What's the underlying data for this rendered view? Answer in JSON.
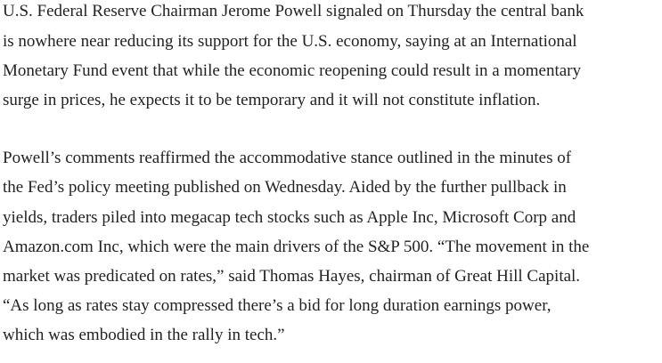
{
  "article": {
    "paragraphs": [
      {
        "lines": [
          "U.S. Federal Reserve Chairman Jerome Powell signaled on Thursday the central bank",
          "is nowhere near reducing its support for the U.S. economy, saying at an International",
          "Monetary Fund event that while the economic reopening could result in a momentary",
          "surge in prices, he expects it to be temporary and it will not constitute inflation."
        ]
      },
      {
        "lines": [
          "Powell’s comments reaffirmed the accommodative stance outlined in the minutes of",
          "the Fed’s policy meeting published on Wednesday. Aided by the further pullback in",
          "yields, traders piled into megacap tech stocks such as Apple Inc, Microsoft Corp and",
          "Amazon.com Inc, which were the main drivers of the S&P 500. “The movement in the",
          "market was predicated on rates,” said Thomas Hayes, chairman of Great Hill Capital.",
          "“As long as rates stay compressed there’s a bid for long duration earnings power,",
          "which was embodied in the rally in tech.”"
        ]
      }
    ]
  }
}
